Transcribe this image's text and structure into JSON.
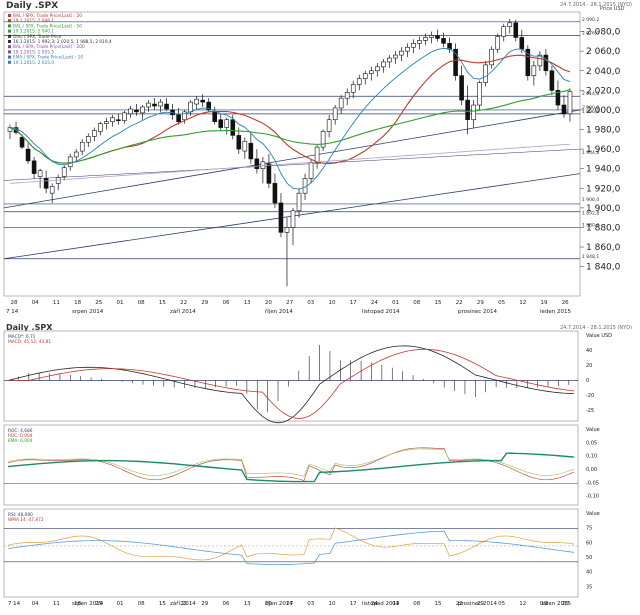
{
  "title": "Daily .SPX",
  "range": "24.7.2014 - 28.1.2015 (NYD)",
  "sub_title": "Daily .SPX",
  "price_axis_label": "Price USD",
  "value_label": "Value USD",
  "chart_data": {
    "type": "candlestick",
    "ylim": [
      1810,
      2100
    ],
    "yticks": [
      1840,
      1860,
      1880,
      1900,
      1920,
      1940,
      1960,
      1980,
      2000,
      2020,
      2040,
      2060,
      2080
    ],
    "ytick_labels": [
      "1 840,0",
      "1 860,0",
      "1 880,0",
      "1 900,0",
      "1 920,0",
      "1 940,0",
      "1 960,0",
      "1 980,0",
      "2 000,0",
      "2 020,0",
      "2 040,0",
      "2 060,0",
      "2 080,0"
    ],
    "x_labels_top": [
      "28",
      "04",
      "11",
      "18",
      "25",
      "01",
      "08",
      "15",
      "22",
      "29",
      "06",
      "13",
      "20",
      "27",
      "03",
      "10",
      "17",
      "24",
      "01",
      "08",
      "15",
      "22",
      "29",
      "05",
      "12",
      "19",
      "26"
    ],
    "month_labels": [
      "srpen 2014",
      "září 2014",
      "říjen 2014",
      "listopad 2014",
      "prosinec 2014",
      "leden 2015"
    ],
    "x_labels_bottom": [
      "7 14",
      "04",
      "11",
      "18",
      "25",
      "01",
      "08",
      "15",
      "22",
      "29",
      "06",
      "13",
      "20",
      "27",
      "03",
      "10",
      "17",
      "24",
      "01",
      "08",
      "15",
      "22",
      "29",
      "05",
      "12",
      "19",
      "26"
    ],
    "legend": [
      {
        "text": "BAL / SPX, Trade Price(Last) : 20",
        "color": "#c0392b"
      },
      {
        "text": "19.1.2015: 2 048,1",
        "color": "#c0392b"
      },
      {
        "text": "BAL / SPX, Trade Price(Last) : 50",
        "color": "#2e9e2e"
      },
      {
        "text": "19.1.2015: 2 040,1",
        "color": "#2e9e2e"
      },
      {
        "text": "Ohlc / SPX, Trade Price",
        "color": "#333"
      },
      {
        "text": "16.1.2015: 1 992,3; 2 020,5; 1 988,5; 2 019,4",
        "color": "#333"
      },
      {
        "text": "BAL / SPX, Trade Price(Last) : 200",
        "color": "#8e44ad"
      },
      {
        "text": "19.1.2015: 1 955,5",
        "color": "#8e44ad"
      },
      {
        "text": "EMA / SPX, Trade Price(Last) : 10",
        "color": "#2980b9"
      },
      {
        "text": "19.1.2015: 2 025,0",
        "color": "#2980b9"
      }
    ],
    "right_flags": [
      "2 090,2",
      "2 076,0",
      "2 014,8",
      "2 000,0",
      "1 996,8",
      "1 904,8",
      "1 906,0",
      "1 892,8",
      "1 880,0",
      "1 848,1"
    ],
    "candles": [
      [
        1978,
        1985,
        1970,
        1982
      ],
      [
        1982,
        1988,
        1975,
        1977
      ],
      [
        1972,
        1975,
        1960,
        1962
      ],
      [
        1960,
        1966,
        1945,
        1948
      ],
      [
        1948,
        1952,
        1930,
        1935
      ],
      [
        1932,
        1940,
        1920,
        1938
      ],
      [
        1930,
        1938,
        1915,
        1920
      ],
      [
        1915,
        1925,
        1905,
        1922
      ],
      [
        1925,
        1934,
        1918,
        1931
      ],
      [
        1932,
        1944,
        1928,
        1941
      ],
      [
        1942,
        1955,
        1938,
        1952
      ],
      [
        1952,
        1960,
        1946,
        1957
      ],
      [
        1958,
        1970,
        1954,
        1967
      ],
      [
        1967,
        1976,
        1962,
        1973
      ],
      [
        1973,
        1982,
        1968,
        1979
      ],
      [
        1978,
        1988,
        1974,
        1986
      ],
      [
        1986,
        1992,
        1980,
        1988
      ],
      [
        1988,
        1995,
        1983,
        1992
      ],
      [
        1990,
        1996,
        1985,
        1989
      ],
      [
        1989,
        1999,
        1986,
        1997
      ],
      [
        1996,
        2004,
        1992,
        2001
      ],
      [
        2000,
        2006,
        1994,
        1998
      ],
      [
        1997,
        2005,
        1990,
        2003
      ],
      [
        2003,
        2010,
        1998,
        2007
      ],
      [
        2006,
        2012,
        2000,
        2004
      ],
      [
        2004,
        2011,
        1998,
        2008
      ],
      [
        2006,
        2012,
        1999,
        2001
      ],
      [
        2000,
        2006,
        1990,
        1995
      ],
      [
        1995,
        2002,
        1985,
        1988
      ],
      [
        1990,
        2000,
        1986,
        1998
      ],
      [
        1998,
        2010,
        1994,
        2008
      ],
      [
        2006,
        2014,
        2000,
        2011
      ],
      [
        2010,
        2016,
        2003,
        2008
      ],
      [
        2008,
        2012,
        1998,
        2000
      ],
      [
        1998,
        2003,
        1985,
        1988
      ],
      [
        1990,
        1996,
        1978,
        1982
      ],
      [
        1982,
        1992,
        1975,
        1990
      ],
      [
        1990,
        1995,
        1970,
        1974
      ],
      [
        1974,
        1982,
        1955,
        1960
      ],
      [
        1958,
        1972,
        1950,
        1968
      ],
      [
        1966,
        1976,
        1945,
        1950
      ],
      [
        1950,
        1960,
        1935,
        1940
      ],
      [
        1940,
        1952,
        1925,
        1947
      ],
      [
        1945,
        1955,
        1920,
        1925
      ],
      [
        1925,
        1935,
        1900,
        1905
      ],
      [
        1905,
        1915,
        1870,
        1875
      ],
      [
        1875,
        1890,
        1820,
        1880
      ],
      [
        1880,
        1900,
        1862,
        1897
      ],
      [
        1897,
        1920,
        1890,
        1915
      ],
      [
        1915,
        1935,
        1908,
        1930
      ],
      [
        1930,
        1950,
        1925,
        1946
      ],
      [
        1946,
        1965,
        1940,
        1962
      ],
      [
        1962,
        1980,
        1958,
        1978
      ],
      [
        1978,
        1995,
        1972,
        1990
      ],
      [
        1990,
        2005,
        1985,
        2002
      ],
      [
        2002,
        2015,
        1996,
        2012
      ],
      [
        2012,
        2022,
        2005,
        2018
      ],
      [
        2018,
        2030,
        2012,
        2026
      ],
      [
        2026,
        2036,
        2020,
        2032
      ],
      [
        2032,
        2040,
        2026,
        2037
      ],
      [
        2037,
        2044,
        2030,
        2040
      ],
      [
        2040,
        2048,
        2034,
        2044
      ],
      [
        2044,
        2052,
        2038,
        2049
      ],
      [
        2049,
        2056,
        2043,
        2053
      ],
      [
        2053,
        2060,
        2047,
        2056
      ],
      [
        2056,
        2064,
        2050,
        2060
      ],
      [
        2060,
        2068,
        2054,
        2064
      ],
      [
        2064,
        2072,
        2058,
        2068
      ],
      [
        2068,
        2075,
        2062,
        2071
      ],
      [
        2071,
        2078,
        2066,
        2074
      ],
      [
        2074,
        2080,
        2068,
        2076
      ],
      [
        2076,
        2082,
        2070,
        2073
      ],
      [
        2073,
        2079,
        2064,
        2068
      ],
      [
        2068,
        2074,
        2058,
        2062
      ],
      [
        2062,
        2068,
        2030,
        2035
      ],
      [
        2035,
        2045,
        2005,
        2010
      ],
      [
        2010,
        2025,
        1975,
        1990
      ],
      [
        1990,
        2010,
        1982,
        2005
      ],
      [
        2005,
        2030,
        2000,
        2028
      ],
      [
        2028,
        2050,
        2024,
        2046
      ],
      [
        2046,
        2065,
        2042,
        2062
      ],
      [
        2062,
        2078,
        2058,
        2075
      ],
      [
        2075,
        2088,
        2070,
        2085
      ],
      [
        2085,
        2093,
        2078,
        2089
      ],
      [
        2089,
        2092,
        2070,
        2074
      ],
      [
        2074,
        2082,
        2058,
        2062
      ],
      [
        2062,
        2066,
        2030,
        2035
      ],
      [
        2035,
        2050,
        2025,
        2045
      ],
      [
        2045,
        2060,
        2040,
        2056
      ],
      [
        2056,
        2062,
        2035,
        2040
      ],
      [
        2040,
        2045,
        2015,
        2020
      ],
      [
        2020,
        2030,
        2000,
        2005
      ],
      [
        2005,
        2015,
        1992,
        1996
      ],
      [
        1996,
        2022,
        1988,
        2019
      ]
    ]
  },
  "macd": {
    "legend": [
      "MACD*: 6,71",
      "MACD: 45,52; 43,81"
    ],
    "axis": [
      "Value USD",
      "40",
      "20",
      "0",
      "-20",
      "-25"
    ]
  },
  "roc": {
    "legend": [
      "ROC: 4,686",
      "ROC: 0,004",
      "EMA: 6,004"
    ],
    "axis": [
      "Value",
      "0,05",
      "0,10",
      "0,00",
      "-0,05",
      "-0,10"
    ]
  },
  "rsi": {
    "legend": [
      "RSI: 48,090",
      "WMA 14: 47,872"
    ],
    "axis": [
      "Value",
      "75",
      "60",
      "50",
      "40",
      "35"
    ]
  }
}
